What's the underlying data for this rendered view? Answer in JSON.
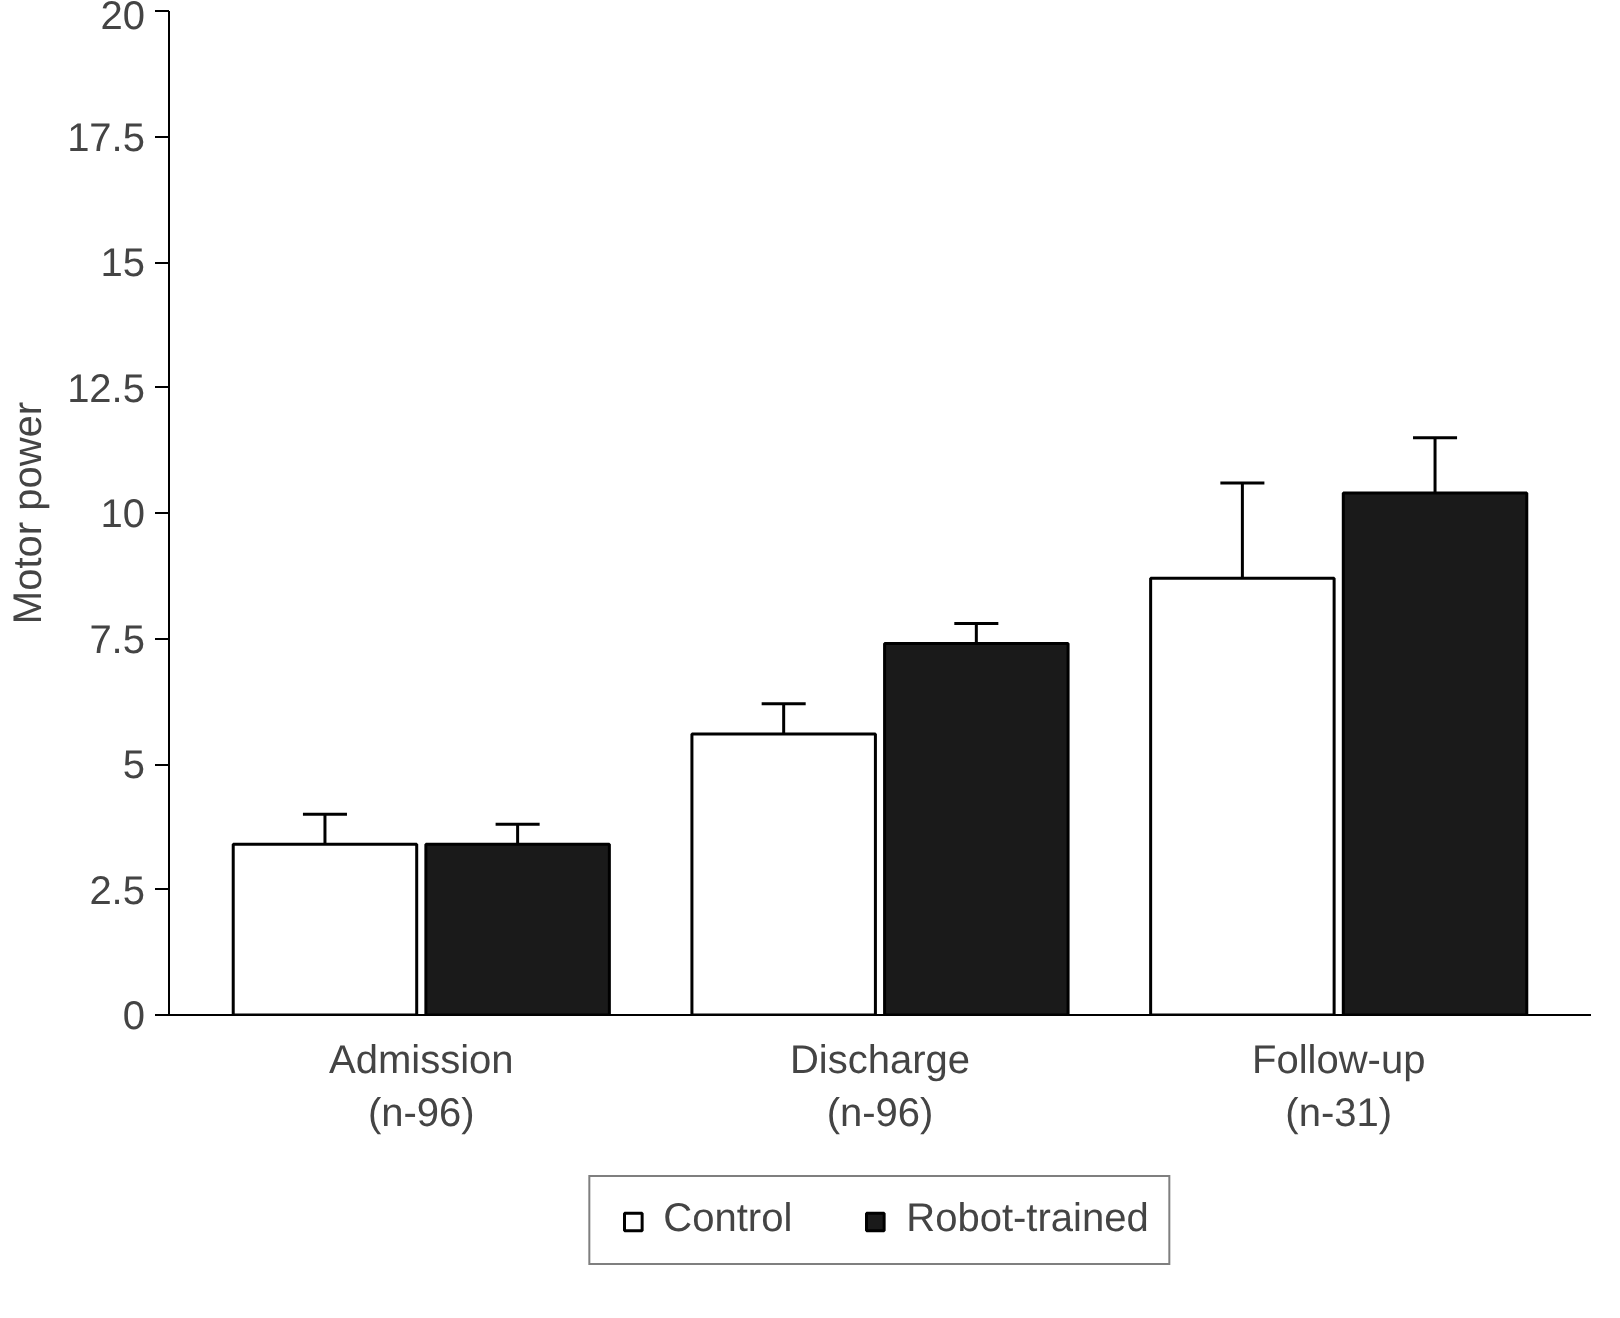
{
  "chart_data": {
    "type": "bar",
    "ylabel": "Motor power",
    "categories": [
      "Admission\n(n-96)",
      "Discharge\n(n-96)",
      "Follow-up\n(n-31)"
    ],
    "series": [
      {
        "name": "Control",
        "color": "#ffffff",
        "values": [
          3.4,
          5.6,
          8.7
        ],
        "errors": [
          [
            3.4,
            4.0
          ],
          [
            5.6,
            6.2
          ],
          [
            8.7,
            10.6
          ]
        ]
      },
      {
        "name": "Robot-trained",
        "color": "#1a1a1a",
        "values": [
          3.4,
          7.4,
          10.4
        ],
        "errors": [
          [
            3.4,
            3.8
          ],
          [
            7.4,
            7.8
          ],
          [
            10.4,
            11.5
          ]
        ]
      }
    ],
    "ylim": [
      0,
      20
    ],
    "yticks": [
      0,
      2.5,
      5,
      7.5,
      10,
      12.5,
      15,
      17.5,
      20
    ],
    "grid": false,
    "legend": "bottom"
  }
}
